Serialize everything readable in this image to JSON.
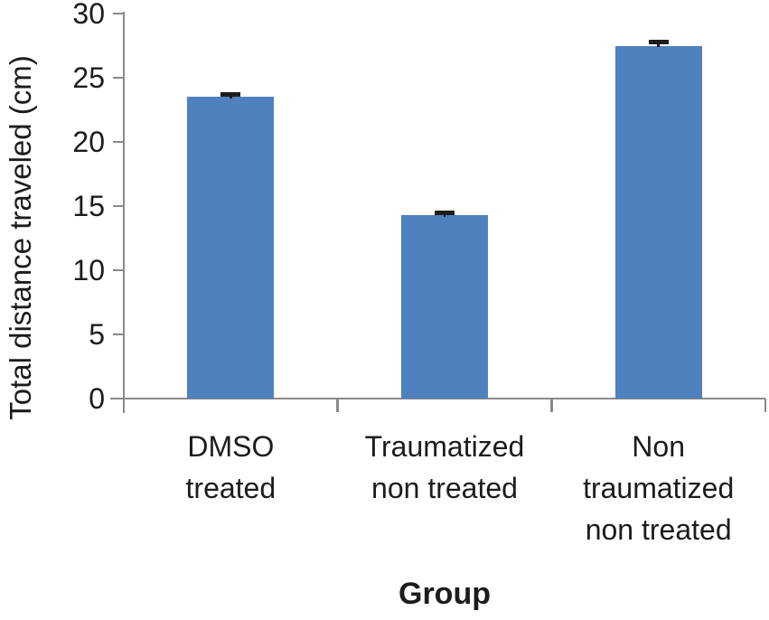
{
  "chart_data": {
    "type": "bar",
    "title": "",
    "xlabel": "Group",
    "ylabel": "Total distance traveled (cm)",
    "categories": [
      "DMSO treated",
      "Traumatized non treated",
      "Non traumatized non treated"
    ],
    "category_label_lines": [
      [
        "DMSO",
        "treated"
      ],
      [
        "Traumatized",
        "non treated"
      ],
      [
        "Non",
        "traumatized",
        "non treated"
      ]
    ],
    "values": [
      23.5,
      14.3,
      27.5
    ],
    "errors": [
      0.2,
      0.15,
      0.25
    ],
    "error_direction": "plus",
    "ylim": [
      0,
      30
    ],
    "yticks": [
      0,
      5,
      10,
      15,
      20,
      25,
      30
    ],
    "grid": false,
    "legend": false,
    "colors": {
      "bar": "#4E81BD",
      "error": "#1c1c1c",
      "axis": "#8a8a8a",
      "text": "#1c1c1c",
      "background": "#ffffff"
    }
  }
}
